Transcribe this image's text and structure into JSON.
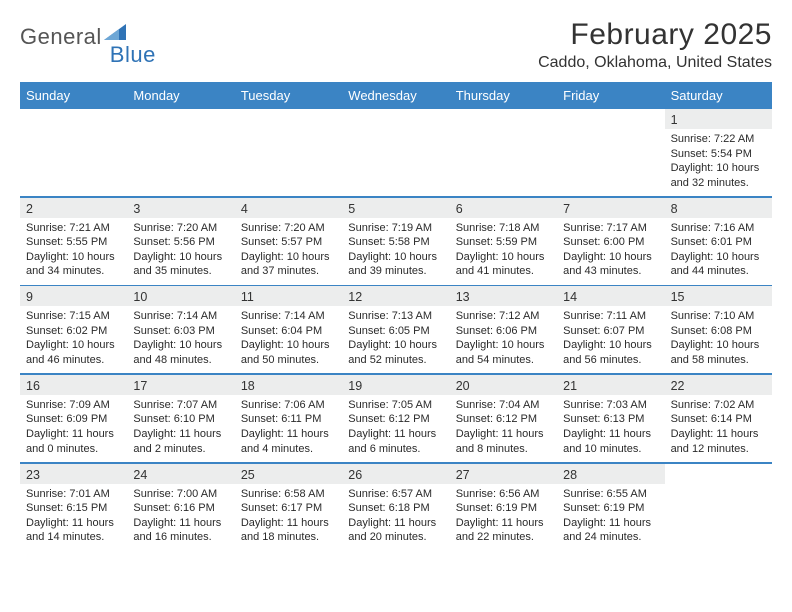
{
  "colors": {
    "header_bg": "#3b84c4",
    "header_text": "#ffffff",
    "numrow_bg": "#eceded",
    "divider": "#3b84c4",
    "logo_gray": "#6b6b6b",
    "logo_blue": "#2f73b6",
    "title_color": "#333333",
    "body_text": "#2a2a2a"
  },
  "logo": {
    "word1": "General",
    "word2": "Blue"
  },
  "header": {
    "title": "February 2025",
    "subtitle": "Caddo, Oklahoma, United States"
  },
  "day_names": [
    "Sunday",
    "Monday",
    "Tuesday",
    "Wednesday",
    "Thursday",
    "Friday",
    "Saturday"
  ],
  "weeks": [
    [
      {
        "n": "",
        "lines": [
          "",
          "",
          "",
          ""
        ]
      },
      {
        "n": "",
        "lines": [
          "",
          "",
          "",
          ""
        ]
      },
      {
        "n": "",
        "lines": [
          "",
          "",
          "",
          ""
        ]
      },
      {
        "n": "",
        "lines": [
          "",
          "",
          "",
          ""
        ]
      },
      {
        "n": "",
        "lines": [
          "",
          "",
          "",
          ""
        ]
      },
      {
        "n": "",
        "lines": [
          "",
          "",
          "",
          ""
        ]
      },
      {
        "n": "1",
        "lines": [
          "Sunrise: 7:22 AM",
          "Sunset: 5:54 PM",
          "Daylight: 10 hours",
          "and 32 minutes."
        ]
      }
    ],
    [
      {
        "n": "2",
        "lines": [
          "Sunrise: 7:21 AM",
          "Sunset: 5:55 PM",
          "Daylight: 10 hours",
          "and 34 minutes."
        ]
      },
      {
        "n": "3",
        "lines": [
          "Sunrise: 7:20 AM",
          "Sunset: 5:56 PM",
          "Daylight: 10 hours",
          "and 35 minutes."
        ]
      },
      {
        "n": "4",
        "lines": [
          "Sunrise: 7:20 AM",
          "Sunset: 5:57 PM",
          "Daylight: 10 hours",
          "and 37 minutes."
        ]
      },
      {
        "n": "5",
        "lines": [
          "Sunrise: 7:19 AM",
          "Sunset: 5:58 PM",
          "Daylight: 10 hours",
          "and 39 minutes."
        ]
      },
      {
        "n": "6",
        "lines": [
          "Sunrise: 7:18 AM",
          "Sunset: 5:59 PM",
          "Daylight: 10 hours",
          "and 41 minutes."
        ]
      },
      {
        "n": "7",
        "lines": [
          "Sunrise: 7:17 AM",
          "Sunset: 6:00 PM",
          "Daylight: 10 hours",
          "and 43 minutes."
        ]
      },
      {
        "n": "8",
        "lines": [
          "Sunrise: 7:16 AM",
          "Sunset: 6:01 PM",
          "Daylight: 10 hours",
          "and 44 minutes."
        ]
      }
    ],
    [
      {
        "n": "9",
        "lines": [
          "Sunrise: 7:15 AM",
          "Sunset: 6:02 PM",
          "Daylight: 10 hours",
          "and 46 minutes."
        ]
      },
      {
        "n": "10",
        "lines": [
          "Sunrise: 7:14 AM",
          "Sunset: 6:03 PM",
          "Daylight: 10 hours",
          "and 48 minutes."
        ]
      },
      {
        "n": "11",
        "lines": [
          "Sunrise: 7:14 AM",
          "Sunset: 6:04 PM",
          "Daylight: 10 hours",
          "and 50 minutes."
        ]
      },
      {
        "n": "12",
        "lines": [
          "Sunrise: 7:13 AM",
          "Sunset: 6:05 PM",
          "Daylight: 10 hours",
          "and 52 minutes."
        ]
      },
      {
        "n": "13",
        "lines": [
          "Sunrise: 7:12 AM",
          "Sunset: 6:06 PM",
          "Daylight: 10 hours",
          "and 54 minutes."
        ]
      },
      {
        "n": "14",
        "lines": [
          "Sunrise: 7:11 AM",
          "Sunset: 6:07 PM",
          "Daylight: 10 hours",
          "and 56 minutes."
        ]
      },
      {
        "n": "15",
        "lines": [
          "Sunrise: 7:10 AM",
          "Sunset: 6:08 PM",
          "Daylight: 10 hours",
          "and 58 minutes."
        ]
      }
    ],
    [
      {
        "n": "16",
        "lines": [
          "Sunrise: 7:09 AM",
          "Sunset: 6:09 PM",
          "Daylight: 11 hours",
          "and 0 minutes."
        ]
      },
      {
        "n": "17",
        "lines": [
          "Sunrise: 7:07 AM",
          "Sunset: 6:10 PM",
          "Daylight: 11 hours",
          "and 2 minutes."
        ]
      },
      {
        "n": "18",
        "lines": [
          "Sunrise: 7:06 AM",
          "Sunset: 6:11 PM",
          "Daylight: 11 hours",
          "and 4 minutes."
        ]
      },
      {
        "n": "19",
        "lines": [
          "Sunrise: 7:05 AM",
          "Sunset: 6:12 PM",
          "Daylight: 11 hours",
          "and 6 minutes."
        ]
      },
      {
        "n": "20",
        "lines": [
          "Sunrise: 7:04 AM",
          "Sunset: 6:12 PM",
          "Daylight: 11 hours",
          "and 8 minutes."
        ]
      },
      {
        "n": "21",
        "lines": [
          "Sunrise: 7:03 AM",
          "Sunset: 6:13 PM",
          "Daylight: 11 hours",
          "and 10 minutes."
        ]
      },
      {
        "n": "22",
        "lines": [
          "Sunrise: 7:02 AM",
          "Sunset: 6:14 PM",
          "Daylight: 11 hours",
          "and 12 minutes."
        ]
      }
    ],
    [
      {
        "n": "23",
        "lines": [
          "Sunrise: 7:01 AM",
          "Sunset: 6:15 PM",
          "Daylight: 11 hours",
          "and 14 minutes."
        ]
      },
      {
        "n": "24",
        "lines": [
          "Sunrise: 7:00 AM",
          "Sunset: 6:16 PM",
          "Daylight: 11 hours",
          "and 16 minutes."
        ]
      },
      {
        "n": "25",
        "lines": [
          "Sunrise: 6:58 AM",
          "Sunset: 6:17 PM",
          "Daylight: 11 hours",
          "and 18 minutes."
        ]
      },
      {
        "n": "26",
        "lines": [
          "Sunrise: 6:57 AM",
          "Sunset: 6:18 PM",
          "Daylight: 11 hours",
          "and 20 minutes."
        ]
      },
      {
        "n": "27",
        "lines": [
          "Sunrise: 6:56 AM",
          "Sunset: 6:19 PM",
          "Daylight: 11 hours",
          "and 22 minutes."
        ]
      },
      {
        "n": "28",
        "lines": [
          "Sunrise: 6:55 AM",
          "Sunset: 6:19 PM",
          "Daylight: 11 hours",
          "and 24 minutes."
        ]
      },
      {
        "n": "",
        "lines": [
          "",
          "",
          "",
          ""
        ]
      }
    ]
  ]
}
